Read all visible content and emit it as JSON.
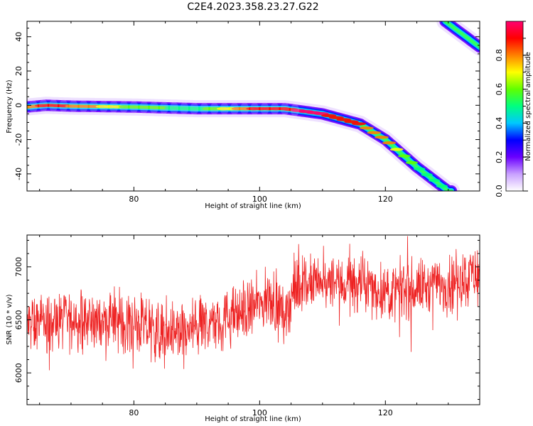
{
  "title": "C2E4.2023.358.23.27.G22",
  "chart_data": [
    {
      "type": "heatmap",
      "xlabel": "Height of straight line (km)",
      "ylabel": "Frequency (Hz)",
      "xlim": [
        63,
        135
      ],
      "ylim": [
        -50,
        49
      ],
      "xticks": [
        80,
        100,
        120
      ],
      "yticks": [
        -40,
        -20,
        0,
        20,
        40
      ],
      "colorbar": {
        "label": "Normalized spectral amplitude",
        "range": [
          0.0,
          1.0
        ],
        "ticks": [
          0.0,
          0.2,
          0.4,
          0.6,
          0.8
        ],
        "tick_labels": [
          "0.0",
          "0.2",
          "0.4",
          "0.6",
          "0.8"
        ],
        "colors": [
          "#ffffff",
          "#c9a0ff",
          "#6a00ff",
          "#0000ff",
          "#00c8ff",
          "#00ff80",
          "#60ff00",
          "#ffff00",
          "#ff8000",
          "#ff0000",
          "#ff0070"
        ]
      },
      "ridge": {
        "x": [
          63,
          66,
          70,
          80,
          90,
          100,
          104,
          107,
          110,
          113,
          116,
          120,
          125,
          130
        ],
        "y": [
          -1,
          0,
          -0.5,
          -1,
          -2,
          -2,
          -2,
          -3.5,
          -5,
          -8,
          -11,
          -20,
          -36,
          -50
        ],
        "amplitude": [
          0.8,
          0.9,
          0.85,
          0.6,
          0.5,
          0.9,
          0.9,
          1.0,
          0.95,
          0.9,
          0.85,
          0.8,
          0.55,
          0.5
        ]
      },
      "ridge2": {
        "x": [
          129.5,
          135
        ],
        "y": [
          49,
          34
        ]
      }
    },
    {
      "type": "line",
      "xlabel": "Height of straight line (km)",
      "ylabel": "SNR (10 * v/v)",
      "xlim": [
        63,
        135
      ],
      "ylim": [
        5700,
        7300
      ],
      "xticks": [
        80,
        100,
        120
      ],
      "yticks": [
        6000,
        6500,
        7000
      ],
      "series": [
        {
          "color": "#ee2222",
          "trend": {
            "x": [
              63,
              70,
              80,
              84,
              88,
              95,
              99,
              102,
              104,
              106,
              110,
              115,
              120,
              125,
              130,
              135
            ],
            "y": [
              6450,
              6500,
              6470,
              6380,
              6380,
              6520,
              6620,
              6700,
              6560,
              6850,
              6820,
              6850,
              6760,
              6800,
              6850,
              6950
            ]
          },
          "noise_amplitude": 170
        }
      ]
    }
  ]
}
